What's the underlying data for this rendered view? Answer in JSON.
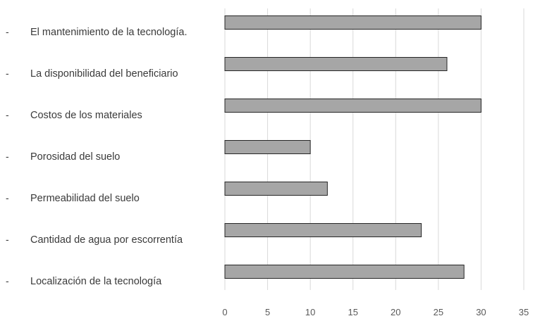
{
  "chart_data": {
    "type": "bar",
    "orientation": "horizontal",
    "categories": [
      "El mantenimiento de la tecnología.",
      "La disponibilidad del beneficiario",
      "Costos de los materiales",
      "Porosidad del suelo",
      "Permeabilidad del suelo",
      "Cantidad de agua por escorrentía",
      "Localización de la tecnología"
    ],
    "values": [
      30,
      26,
      30,
      10,
      12,
      23,
      28
    ],
    "bullet": "-",
    "xticks": [
      "0",
      "5",
      "10",
      "15",
      "20",
      "25",
      "30",
      "35"
    ],
    "xlim": [
      0,
      35
    ],
    "grid": "vertical",
    "legend": "none",
    "title": "",
    "xlabel": "",
    "ylabel": "",
    "colors": {
      "bar_fill": "#a6a6a6",
      "bar_stroke": "#262626",
      "grid": "#d9d9d9",
      "text": "#3a3a3a",
      "tick_text": "#595959"
    }
  }
}
